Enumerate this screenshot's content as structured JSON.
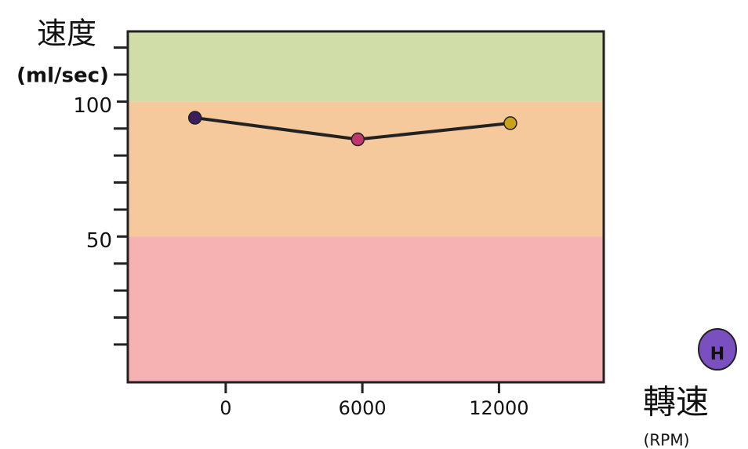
{
  "chart_data": {
    "type": "line",
    "ylabel": "速度",
    "ylabel_unit": "(ml/sec)",
    "xlabel": "轉速",
    "xlabel_unit": "(RPM)",
    "badge": "H",
    "x": [
      -1350,
      5800,
      12500
    ],
    "series": [
      {
        "color": "#222222",
        "values": [
          94,
          86,
          92
        ],
        "point_colors": [
          "#3a1f5c",
          "#c2366e",
          "#c9a21a"
        ]
      }
    ],
    "xlim": [
      -4300,
      16600
    ],
    "xticks": [
      0,
      6000,
      12000
    ],
    "ylim": [
      -4,
      126
    ],
    "yticks": [
      50,
      100
    ],
    "yminor_ticks": [
      10,
      20,
      30,
      40,
      60,
      70,
      80,
      90,
      110,
      120
    ],
    "bands": [
      {
        "from": 100,
        "to": 126,
        "color": "#c9d79a"
      },
      {
        "from": 50,
        "to": 100,
        "color": "#f3c08a"
      },
      {
        "from": -4,
        "to": 50,
        "color": "#f4a3a6"
      }
    ]
  }
}
